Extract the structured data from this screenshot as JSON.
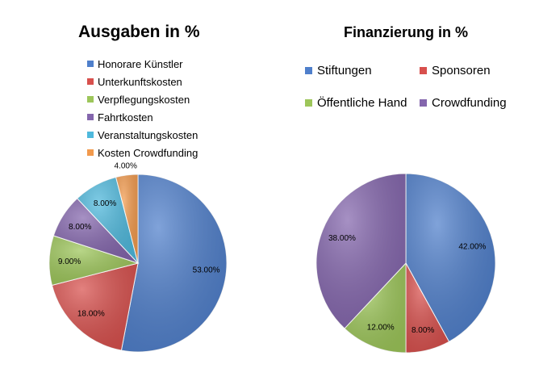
{
  "chart_data": [
    {
      "type": "pie",
      "title": "Ausgaben in %",
      "legend_placement": "top",
      "slices": [
        {
          "label": "Honorare Künstler",
          "value": 53.0,
          "value_label": "53.00%",
          "color": "#4f7fcb"
        },
        {
          "label": "Unterkunftskosten",
          "value": 18.0,
          "value_label": "18.00%",
          "color": "#d8504d"
        },
        {
          "label": "Verpflegungskosten",
          "value": 9.0,
          "value_label": "9.00%",
          "color": "#9dc65a"
        },
        {
          "label": "Fahrtkosten",
          "value": 8.0,
          "value_label": "8.00%",
          "color": "#8466ad"
        },
        {
          "label": "Veranstaltungskosten",
          "value": 8.0,
          "value_label": "8.00%",
          "color": "#4fb9dd"
        },
        {
          "label": "Kosten Crowdfunding",
          "value": 4.0,
          "value_label": "4.00%",
          "color": "#f29a4d"
        }
      ]
    },
    {
      "type": "pie",
      "title": "Finanzierung in %",
      "legend_placement": "top",
      "slices": [
        {
          "label": "Stiftungen",
          "value": 42.0,
          "value_label": "42.00%",
          "color": "#4f7fcb"
        },
        {
          "label": "Sponsoren",
          "value": 8.0,
          "value_label": "8.00%",
          "color": "#d8504d"
        },
        {
          "label": "Öffentliche Hand",
          "value": 12.0,
          "value_label": "12.00%",
          "color": "#9dc65a"
        },
        {
          "label": "Crowdfunding",
          "value": 38.0,
          "value_label": "38.00%",
          "color": "#8466ad"
        }
      ]
    }
  ]
}
